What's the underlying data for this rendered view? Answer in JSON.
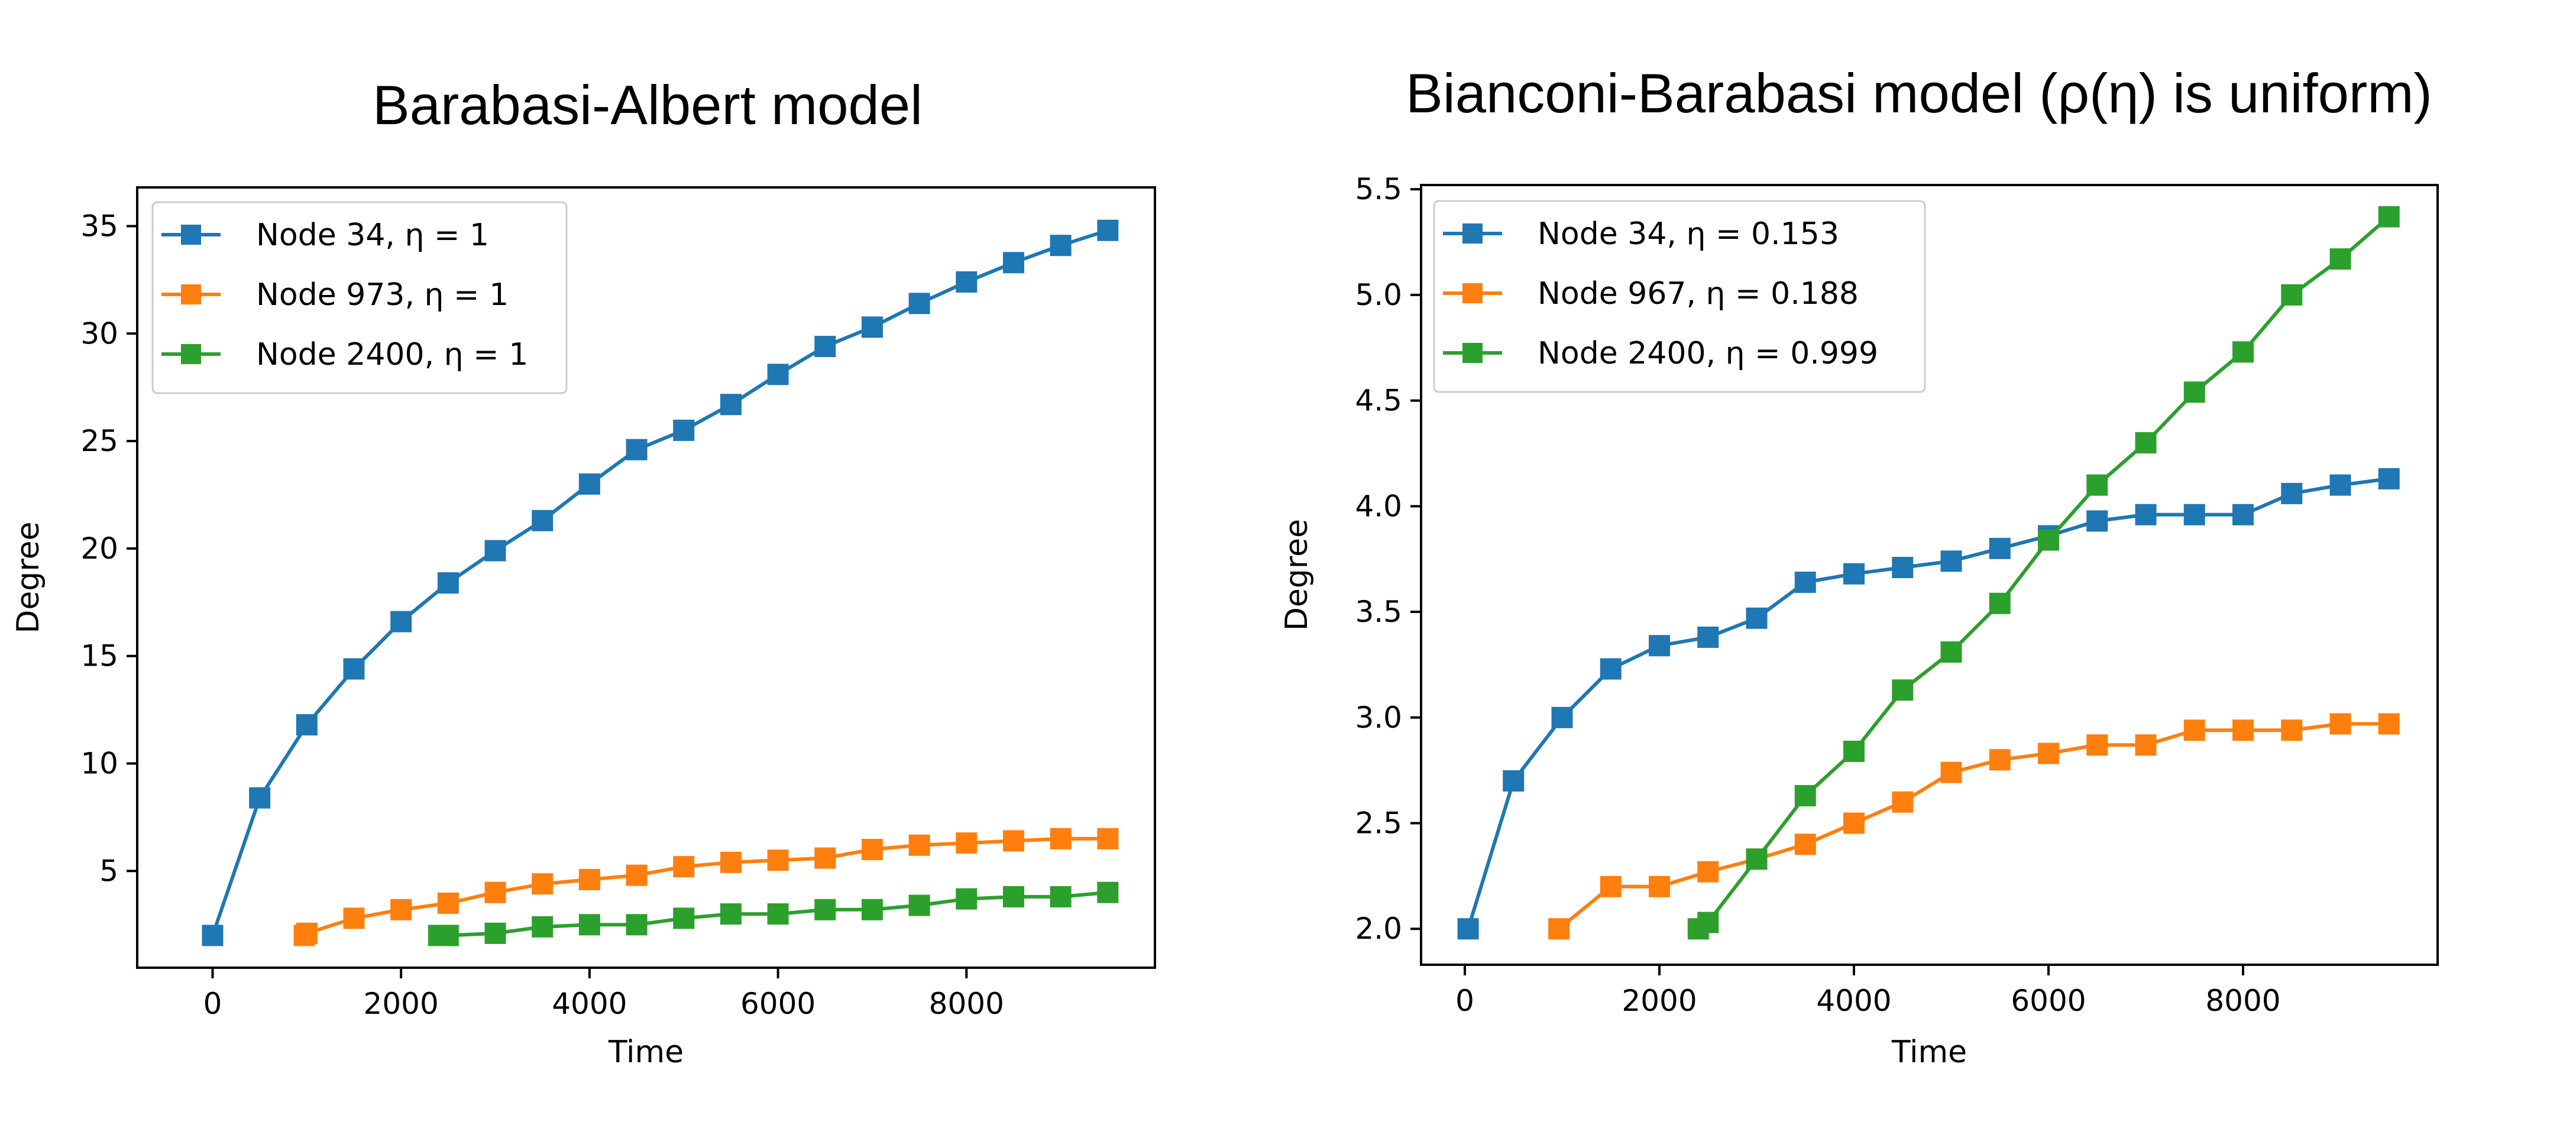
{
  "chart_data": [
    {
      "type": "line",
      "title": "Barabasi-Albert model",
      "xlabel": "Time",
      "ylabel": "Degree",
      "xlim": [
        -800,
        10000
      ],
      "ylim": [
        0.5,
        36.8
      ],
      "xticks": [
        0,
        2000,
        4000,
        6000,
        8000
      ],
      "yticks": [
        5,
        10,
        15,
        20,
        25,
        30,
        35
      ],
      "legend": "top-left",
      "grid": false,
      "series": [
        {
          "name": "Node 34, η =  1",
          "color": "#1f77b4",
          "x": [
            0,
            500,
            1000,
            1500,
            2000,
            2500,
            3000,
            3500,
            4000,
            4500,
            5000,
            5500,
            6000,
            6500,
            7000,
            7500,
            8000,
            8500,
            9000,
            9500
          ],
          "y": [
            2.0,
            8.4,
            11.8,
            14.4,
            16.6,
            18.4,
            19.9,
            21.3,
            23.0,
            24.6,
            25.5,
            26.7,
            28.1,
            29.4,
            30.3,
            31.4,
            32.4,
            33.3,
            34.1,
            34.8
          ]
        },
        {
          "name": "Node 973, η =  1",
          "color": "#ff7f0e",
          "x": [
            973,
            1000,
            1500,
            2000,
            2500,
            3000,
            3500,
            4000,
            4500,
            5000,
            5500,
            6000,
            6500,
            7000,
            7500,
            8000,
            8500,
            9000,
            9500
          ],
          "y": [
            2.0,
            2.1,
            2.8,
            3.2,
            3.5,
            4.0,
            4.4,
            4.6,
            4.8,
            5.2,
            5.4,
            5.5,
            5.6,
            6.0,
            6.2,
            6.3,
            6.4,
            6.5,
            6.5
          ]
        },
        {
          "name": "Node 2400, η =  1",
          "color": "#2ca02c",
          "x": [
            2400,
            2500,
            3000,
            3500,
            4000,
            4500,
            5000,
            5500,
            6000,
            6500,
            7000,
            7500,
            8000,
            8500,
            9000,
            9500
          ],
          "y": [
            2.0,
            2.0,
            2.1,
            2.4,
            2.5,
            2.5,
            2.8,
            3.0,
            3.0,
            3.2,
            3.2,
            3.4,
            3.7,
            3.8,
            3.8,
            4.0
          ]
        }
      ]
    },
    {
      "type": "line",
      "title": "Bianconi-Barabasi model (ρ(η) is uniform)",
      "xlabel": "Time",
      "ylabel": "Degree",
      "xlim": [
        -450,
        10000
      ],
      "ylim": [
        1.83,
        5.52
      ],
      "xticks": [
        0,
        2000,
        4000,
        6000,
        8000
      ],
      "yticks": [
        2.0,
        2.5,
        3.0,
        3.5,
        4.0,
        4.5,
        5.0,
        5.5
      ],
      "legend": "top-left",
      "grid": false,
      "series": [
        {
          "name": "Node 34, η =  0.153",
          "color": "#1f77b4",
          "x": [
            34,
            500,
            1000,
            1500,
            2000,
            2500,
            3000,
            3500,
            4000,
            4500,
            5000,
            5500,
            6000,
            6500,
            7000,
            7500,
            8000,
            8500,
            9000,
            9500
          ],
          "y": [
            2.0,
            2.7,
            3.0,
            3.23,
            3.34,
            3.38,
            3.47,
            3.64,
            3.68,
            3.71,
            3.74,
            3.8,
            3.86,
            3.93,
            3.96,
            3.96,
            3.96,
            4.06,
            4.1,
            4.13
          ]
        },
        {
          "name": "Node 967, η =  0.188",
          "color": "#ff7f0e",
          "x": [
            967,
            1500,
            2000,
            2500,
            3000,
            3500,
            4000,
            4500,
            5000,
            5500,
            6000,
            6500,
            7000,
            7500,
            8000,
            8500,
            9000,
            9500
          ],
          "y": [
            2.0,
            2.2,
            2.2,
            2.27,
            2.33,
            2.4,
            2.5,
            2.6,
            2.74,
            2.8,
            2.83,
            2.87,
            2.87,
            2.94,
            2.94,
            2.94,
            2.97,
            2.97
          ]
        },
        {
          "name": "Node 2400, η =  0.999",
          "color": "#2ca02c",
          "x": [
            2400,
            2500,
            3000,
            3500,
            4000,
            4500,
            5000,
            5500,
            6000,
            6500,
            7000,
            7500,
            8000,
            8500,
            9000,
            9500
          ],
          "y": [
            2.0,
            2.03,
            2.33,
            2.63,
            2.84,
            3.13,
            3.31,
            3.54,
            3.84,
            4.1,
            4.3,
            4.54,
            4.73,
            5.0,
            5.17,
            5.37
          ]
        }
      ]
    }
  ]
}
